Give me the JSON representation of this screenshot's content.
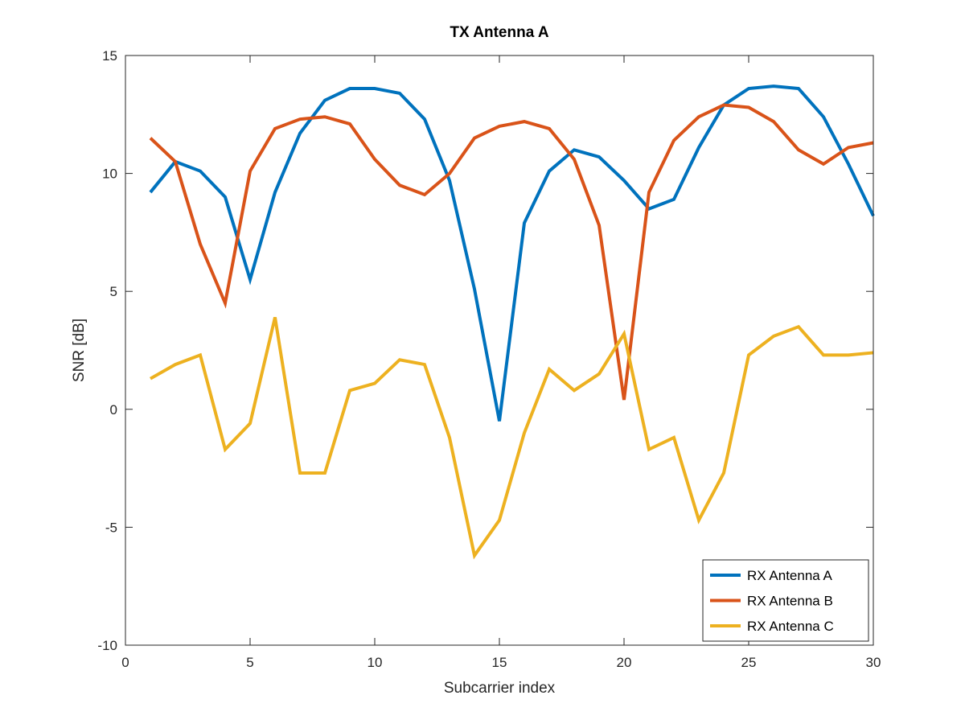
{
  "chart_data": {
    "type": "line",
    "title": "TX Antenna A",
    "xlabel": "Subcarrier index",
    "ylabel": "SNR [dB]",
    "xlim": [
      0,
      30
    ],
    "ylim": [
      -10,
      15
    ],
    "xticks": [
      0,
      5,
      10,
      15,
      20,
      25,
      30
    ],
    "yticks": [
      -10,
      -5,
      0,
      5,
      10,
      15
    ],
    "xtick_labels": [
      "0",
      "5",
      "10",
      "15",
      "20",
      "25",
      "30"
    ],
    "ytick_labels": [
      "-10",
      "-5",
      "0",
      "5",
      "10",
      "15"
    ],
    "grid": false,
    "legend_position": "bottom-right",
    "x": [
      1,
      2,
      3,
      4,
      5,
      6,
      7,
      8,
      9,
      10,
      11,
      12,
      13,
      14,
      15,
      16,
      17,
      18,
      19,
      20,
      21,
      22,
      23,
      24,
      25,
      26,
      27,
      28,
      29,
      30
    ],
    "series": [
      {
        "name": "RX Antenna A",
        "color": "#0072BD",
        "values": [
          9.2,
          10.5,
          10.1,
          9.0,
          5.5,
          9.2,
          11.7,
          13.1,
          13.6,
          13.6,
          13.4,
          12.3,
          9.7,
          5.1,
          -0.5,
          7.9,
          10.1,
          11.0,
          10.7,
          9.7,
          8.5,
          8.9,
          11.1,
          12.9,
          13.6,
          13.7,
          13.6,
          12.4,
          10.4,
          8.2
        ]
      },
      {
        "name": "RX Antenna B",
        "color": "#D95319",
        "values": [
          11.5,
          10.5,
          7.0,
          4.5,
          10.1,
          11.9,
          12.3,
          12.4,
          12.1,
          10.6,
          9.5,
          9.1,
          10.0,
          11.5,
          12.0,
          12.2,
          11.9,
          10.6,
          7.8,
          0.4,
          9.2,
          11.4,
          12.4,
          12.9,
          12.8,
          12.2,
          11.0,
          10.4,
          11.1,
          11.3
        ]
      },
      {
        "name": "RX Antenna C",
        "color": "#EDB120",
        "values": [
          1.3,
          1.9,
          2.3,
          -1.7,
          -0.6,
          3.9,
          -2.7,
          -2.7,
          0.8,
          1.1,
          2.1,
          1.9,
          -1.2,
          -6.2,
          -4.7,
          -1.0,
          1.7,
          0.8,
          1.5,
          3.2,
          -1.7,
          -1.2,
          -4.7,
          -2.7,
          2.3,
          3.1,
          3.5,
          2.3,
          2.3,
          2.4
        ]
      }
    ]
  }
}
